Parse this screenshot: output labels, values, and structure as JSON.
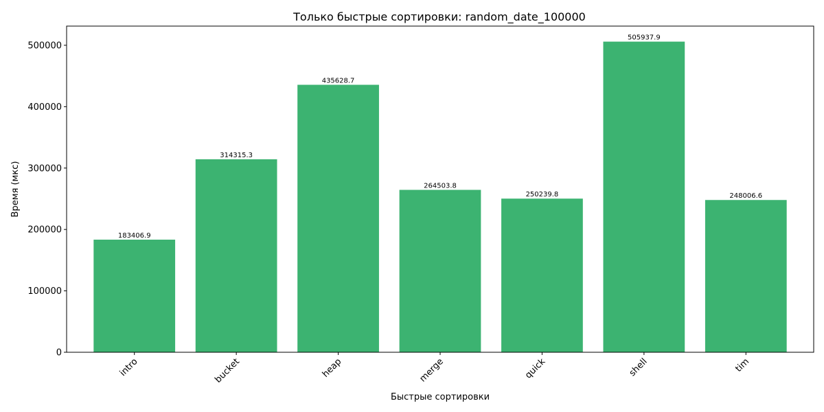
{
  "chart_data": {
    "type": "bar",
    "title": "Только быстрые сортировки: random_date_100000",
    "xlabel": "Быстрые сортировки",
    "ylabel": "Время (мкс)",
    "categories": [
      "intro",
      "bucket",
      "heap",
      "merge",
      "quick",
      "shell",
      "tim"
    ],
    "values": [
      183406.9,
      314315.3,
      435628.7,
      264503.8,
      250239.8,
      505937.9,
      248006.6
    ],
    "data_labels": [
      "183406.9",
      "314315.3",
      "435628.7",
      "264503.8",
      "250239.8",
      "505937.9",
      "248006.6"
    ],
    "ylim": [
      0,
      531234.8
    ],
    "yticks": [
      0,
      100000,
      200000,
      300000,
      400000,
      500000
    ],
    "ytick_labels": [
      "0",
      "100000",
      "200000",
      "300000",
      "400000",
      "500000"
    ],
    "xtick_rotation_deg": 45,
    "grid": false,
    "legend": "none",
    "bar_color": "#3cb371"
  }
}
